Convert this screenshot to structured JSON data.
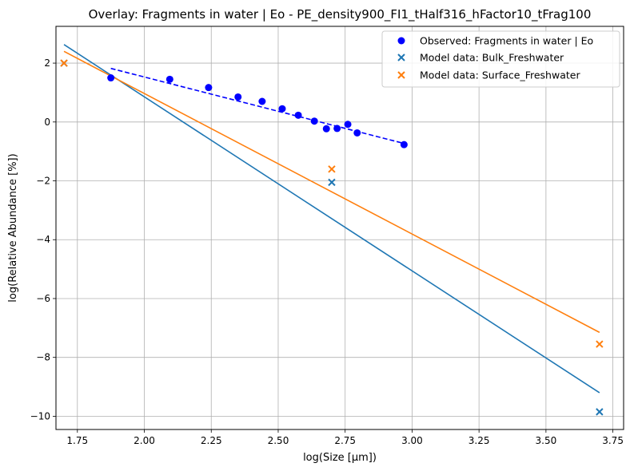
{
  "chart_data": {
    "type": "scatter",
    "title": "Overlay: Fragments in water | Eo - PE_density900_FI1_tHalf316_hFactor10_tFrag100",
    "xlabel": "log(Size [μm])",
    "ylabel": "log(Relative Abundance [%])",
    "xlim": [
      1.67,
      3.79
    ],
    "ylim": [
      -10.45,
      3.25
    ],
    "xticks": [
      1.75,
      2.0,
      2.25,
      2.5,
      2.75,
      3.0,
      3.25,
      3.5,
      3.75
    ],
    "xtick_labels": [
      "1.75",
      "2.00",
      "2.25",
      "2.50",
      "2.75",
      "3.00",
      "3.25",
      "3.50",
      "3.75"
    ],
    "yticks": [
      -10,
      -8,
      -6,
      -4,
      -2,
      0,
      2
    ],
    "ytick_labels": [
      "−10",
      "−8",
      "−6",
      "−4",
      "−2",
      "0",
      "2"
    ],
    "grid": true,
    "legend_position": "top-right",
    "series": [
      {
        "name": "Observed: Fragments in water | Eo",
        "marker": "circle",
        "color": "#0000ff",
        "points": [
          [
            1.875,
            1.5
          ],
          [
            2.095,
            1.45
          ],
          [
            2.24,
            1.17
          ],
          [
            2.35,
            0.85
          ],
          [
            2.44,
            0.7
          ],
          [
            2.515,
            0.45
          ],
          [
            2.575,
            0.23
          ],
          [
            2.635,
            0.03
          ],
          [
            2.68,
            -0.23
          ],
          [
            2.72,
            -0.22
          ],
          [
            2.76,
            -0.08
          ],
          [
            2.795,
            -0.37
          ],
          [
            2.97,
            -0.77
          ]
        ],
        "fit": {
          "style": "dashed",
          "color": "#0000ff",
          "x": [
            1.875,
            2.97
          ],
          "y": [
            1.82,
            -0.73
          ]
        }
      },
      {
        "name": "Model data: Bulk_Freshwater",
        "marker": "x",
        "color": "#1f77b4",
        "points": [
          [
            1.7,
            2.0
          ],
          [
            2.7,
            -2.05
          ],
          [
            3.7,
            -9.85
          ]
        ],
        "fit": {
          "style": "solid",
          "color": "#1f77b4",
          "x": [
            1.7,
            3.7
          ],
          "y": [
            2.63,
            -9.2
          ]
        }
      },
      {
        "name": "Model data: Surface_Freshwater",
        "marker": "x",
        "color": "#ff7f0e",
        "points": [
          [
            1.7,
            2.0
          ],
          [
            2.7,
            -1.6
          ],
          [
            3.7,
            -7.55
          ]
        ],
        "fit": {
          "style": "solid",
          "color": "#ff7f0e",
          "x": [
            1.7,
            3.7
          ],
          "y": [
            2.4,
            -7.15
          ]
        }
      }
    ]
  }
}
